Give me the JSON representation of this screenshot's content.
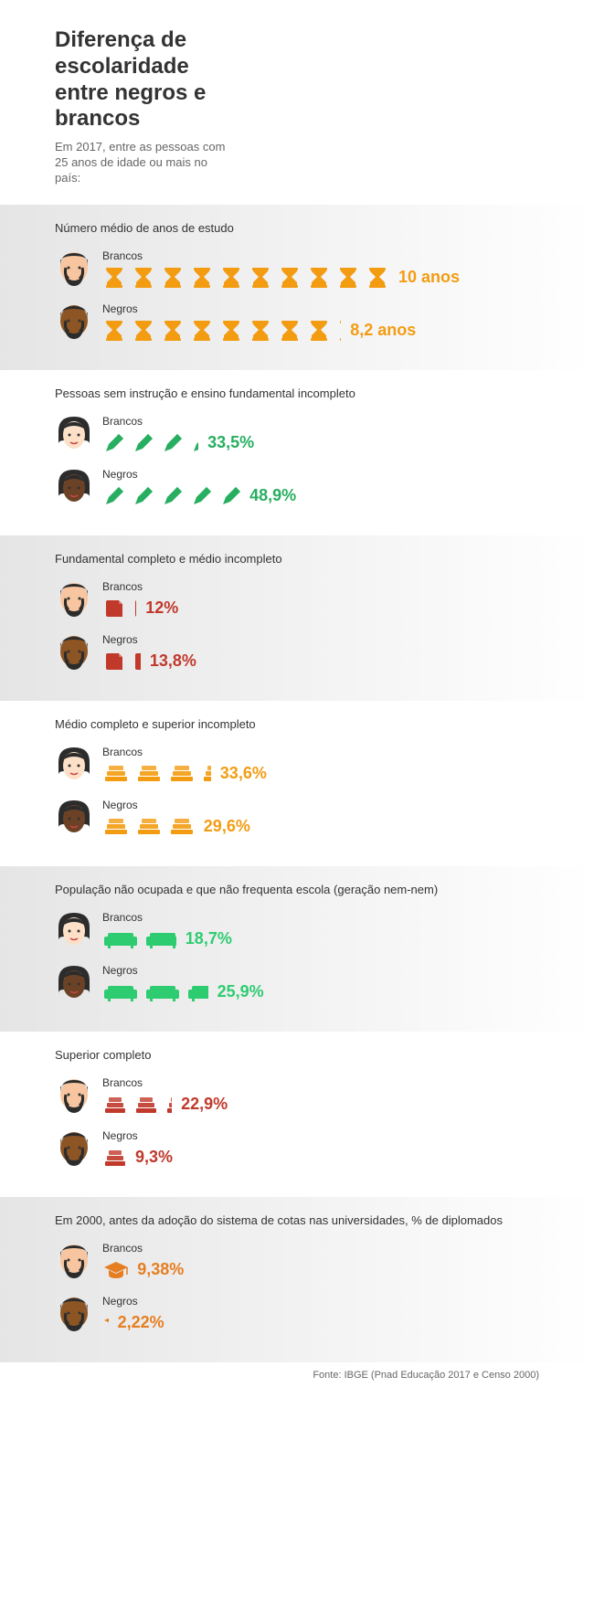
{
  "header": {
    "title": "Diferença de escolaridade entre negros e brancos",
    "subtitle": "Em 2017, entre as pessoas com 25 anos de idade ou mais no país:"
  },
  "colors": {
    "orange": "#f39c12",
    "green": "#27ae60",
    "red": "#c0392b",
    "teal": "#2ecc71",
    "brightOrange": "#e67e22",
    "skin_light": "#f7c59f",
    "skin_dark": "#8d5524",
    "skin_female_light": "#fce0c8",
    "skin_female_dark": "#6b4226",
    "hair_dark": "#2c2c2c"
  },
  "sections": [
    {
      "title": "Número médio de anos de estudo",
      "grey": true,
      "face_type": "male",
      "icon_type": "hourglass",
      "icon_color": "#f39c12",
      "value_color": "#f39c12",
      "rows": [
        {
          "label": "Brancos",
          "skin": "light",
          "count": 10,
          "partial": 0,
          "value": "10 anos"
        },
        {
          "label": "Negros",
          "skin": "dark",
          "count": 8,
          "partial": 0.2,
          "value": "8,2 anos"
        }
      ]
    },
    {
      "title": "Pessoas sem instrução e ensino fundamental incompleto",
      "grey": false,
      "face_type": "female",
      "icon_type": "pencil",
      "icon_color": "#27ae60",
      "value_color": "#27ae60",
      "rows": [
        {
          "label": "Brancos",
          "skin": "light",
          "count": 3,
          "partial": 0.35,
          "value": "33,5%"
        },
        {
          "label": "Negros",
          "skin": "dark",
          "count": 4,
          "partial": 0.89,
          "value": "48,9%"
        }
      ]
    },
    {
      "title": "Fundamental completo e médio incompleto",
      "grey": true,
      "face_type": "male",
      "icon_type": "book",
      "icon_color": "#c0392b",
      "value_color": "#c0392b",
      "rows": [
        {
          "label": "Brancos",
          "skin": "light",
          "count": 1,
          "partial": 0.2,
          "value": "12%"
        },
        {
          "label": "Negros",
          "skin": "dark",
          "count": 1,
          "partial": 0.38,
          "value": "13,8%"
        }
      ]
    },
    {
      "title": "Médio completo e superior incompleto",
      "grey": false,
      "face_type": "female",
      "icon_type": "books",
      "icon_color": "#f39c12",
      "value_color": "#f39c12",
      "rows": [
        {
          "label": "Brancos",
          "skin": "light",
          "count": 3,
          "partial": 0.36,
          "value": "33,6%"
        },
        {
          "label": "Negros",
          "skin": "dark",
          "count": 2,
          "partial": 0.96,
          "value": "29,6%"
        }
      ]
    },
    {
      "title": "População não ocupada e que não frequenta escola (geração nem-nem)",
      "grey": true,
      "face_type": "female",
      "icon_type": "couch",
      "icon_color": "#2ecc71",
      "value_color": "#2ecc71",
      "rows": [
        {
          "label": "Brancos",
          "skin": "light",
          "count": 1,
          "partial": 0.87,
          "value": "18,7%"
        },
        {
          "label": "Negros",
          "skin": "dark",
          "count": 2,
          "partial": 0.59,
          "value": "25,9%"
        }
      ]
    },
    {
      "title": "Superior completo",
      "grey": false,
      "face_type": "male",
      "icon_type": "books2",
      "icon_color": "#c0392b",
      "value_color": "#c0392b",
      "rows": [
        {
          "label": "Brancos",
          "skin": "light",
          "count": 2,
          "partial": 0.29,
          "value": "22,9%"
        },
        {
          "label": "Negros",
          "skin": "dark",
          "count": 0,
          "partial": 0.93,
          "value": "9,3%"
        }
      ]
    },
    {
      "title": "Em 2000, antes da adoção do sistema de cotas nas universidades, % de diplomados",
      "grey": true,
      "face_type": "male",
      "icon_type": "gradcap",
      "icon_color": "#e67e22",
      "value_color": "#e67e22",
      "rows": [
        {
          "label": "Brancos",
          "skin": "light",
          "count": 0,
          "partial": 0.94,
          "value": "9,38%"
        },
        {
          "label": "Negros",
          "skin": "dark",
          "count": 0,
          "partial": 0.22,
          "value": "2,22%"
        }
      ]
    }
  ],
  "footer": "Fonte: IBGE (Pnad Educação 2017 e Censo 2000)"
}
